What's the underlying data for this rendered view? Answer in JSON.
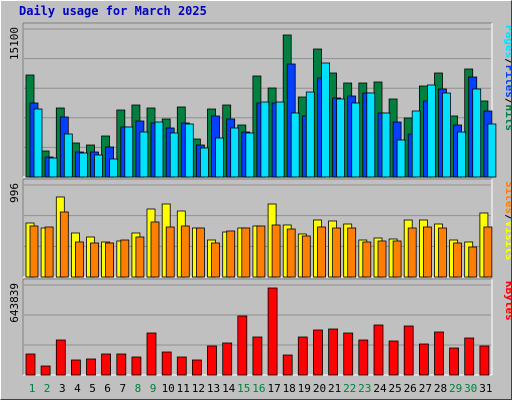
{
  "chart_data": {
    "title": "Daily usage for March 2025",
    "type": "bar",
    "days": [
      "1",
      "2",
      "3",
      "4",
      "5",
      "6",
      "7",
      "8",
      "9",
      "10",
      "11",
      "12",
      "13",
      "14",
      "15",
      "16",
      "17",
      "18",
      "19",
      "20",
      "21",
      "22",
      "23",
      "24",
      "25",
      "26",
      "27",
      "28",
      "29",
      "30",
      "31"
    ],
    "weekend_days": [
      "1",
      "2",
      "8",
      "9",
      "15",
      "16",
      "22",
      "23",
      "29",
      "30"
    ],
    "panels": [
      {
        "id": "top",
        "ylabel_max": "15100",
        "series_labels": [
          "Pages",
          "Files",
          "Hits"
        ],
        "colors": {
          "Hits": "#008040",
          "Files": "#0040ff",
          "Pages": "#00e0ff"
        },
        "series": [
          {
            "name": "Hits",
            "values": [
              10400,
              2700,
              7000,
              3500,
              3300,
              4200,
              6800,
              7300,
              7000,
              5900,
              7100,
              3900,
              6900,
              7300,
              5300,
              10300,
              9100,
              14500,
              8200,
              13100,
              10600,
              9600,
              9600,
              9700,
              8000,
              6000,
              9300,
              10600,
              6200,
              11000,
              7800
            ]
          },
          {
            "name": "Files",
            "values": [
              7600,
              2000,
              6100,
              2500,
              2500,
              3100,
              5100,
              5700,
              5500,
              5000,
              5500,
              3300,
              6200,
              5900,
              4600,
              7600,
              7600,
              11500,
              6200,
              10100,
              8100,
              8300,
              8600,
              6500,
              5600,
              4400,
              7800,
              9000,
              5300,
              10200,
              6700
            ]
          },
          {
            "name": "Pages",
            "values": [
              6900,
              1900,
              4400,
              2400,
              2200,
              1800,
              5100,
              4600,
              5600,
              4500,
              5400,
              3000,
              4000,
              5000,
              4500,
              7700,
              7700,
              6500,
              8700,
              11600,
              8000,
              7600,
              8600,
              6500,
              3800,
              6700,
              9400,
              8600,
              4600,
              9000,
              5400
            ]
          }
        ]
      },
      {
        "id": "middle",
        "ylabel_max": "996",
        "series_labels": [
          "Sites",
          "Visits"
        ],
        "colors": {
          "Visits": "#ffff00",
          "Sites": "#ff8000"
        },
        "series": [
          {
            "name": "Visits",
            "values": [
              610,
              560,
              910,
              500,
              450,
              400,
              410,
              500,
              770,
              830,
              750,
              560,
              420,
              510,
              560,
              580,
              830,
              590,
              490,
              650,
              630,
              600,
              420,
              440,
              430,
              650,
              650,
              600,
              420,
              400,
              730
            ]
          },
          {
            "name": "Sites",
            "values": [
              580,
              570,
              740,
              400,
              380,
              380,
              420,
              450,
              620,
              570,
              580,
              550,
              380,
              520,
              550,
              580,
              590,
              540,
              460,
              570,
              560,
              560,
              400,
              410,
              410,
              560,
              570,
              560,
              380,
              340,
              570
            ]
          }
        ]
      },
      {
        "id": "bottom",
        "ylabel_max": "643839",
        "series_labels": [
          "KBytes"
        ],
        "colors": {
          "KBytes": "#ff0000"
        },
        "series": [
          {
            "name": "KBytes",
            "values": [
              170000,
              70000,
              290000,
              120000,
              130000,
              170000,
              170000,
              150000,
              340000,
              190000,
              150000,
              120000,
              240000,
              260000,
              480000,
              310000,
              710000,
              160000,
              310000,
              370000,
              380000,
              340000,
              290000,
              410000,
              280000,
              400000,
              250000,
              350000,
              220000,
              300000,
              240000
            ]
          }
        ]
      }
    ]
  }
}
